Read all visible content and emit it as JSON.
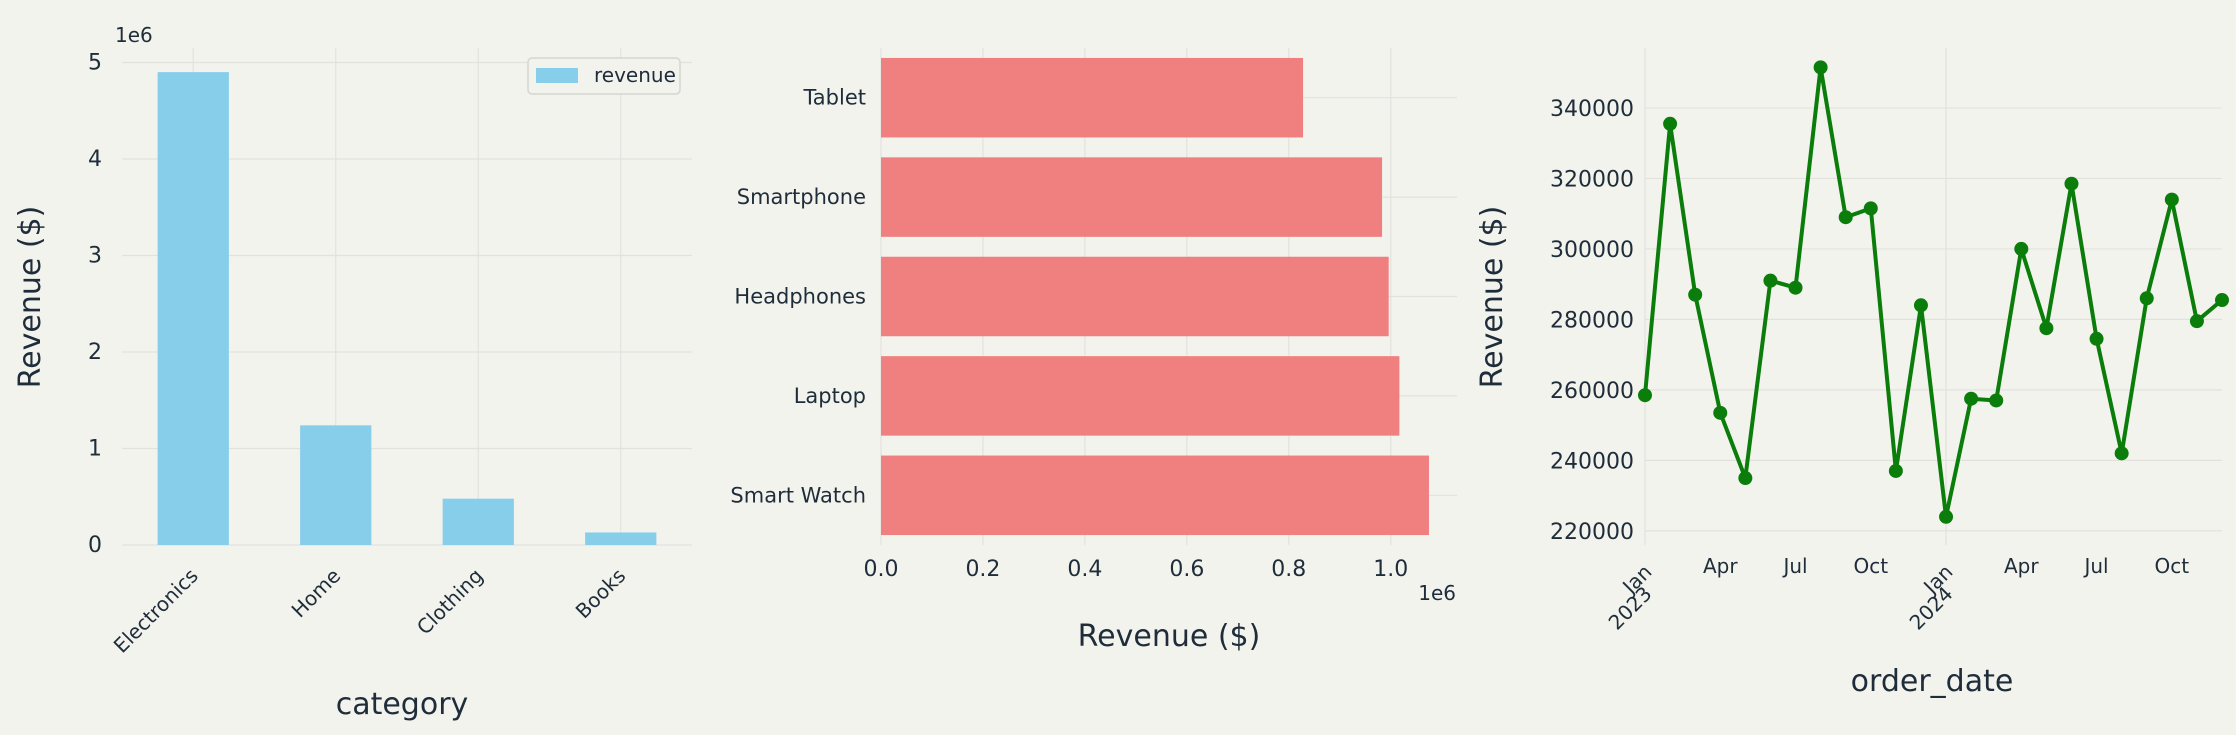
{
  "colors": {
    "background": "#f3f3ee",
    "grid": "#e2e2dd",
    "text": "#1f2d3a",
    "bar_vertical": "#87ceeb",
    "bar_horizontal": "#f08080",
    "line": "#0a7d0a"
  },
  "chart_data": [
    {
      "type": "bar",
      "categories": [
        "Electronics",
        "Home",
        "Clothing",
        "Books"
      ],
      "series": [
        {
          "name": "revenue",
          "values": [
            4900000,
            1240000,
            480000,
            130000
          ]
        }
      ],
      "xlabel": "category",
      "ylabel": "Revenue ($)",
      "ylim": [
        0,
        5150000
      ],
      "yticks": [
        0,
        1000000,
        2000000,
        3000000,
        4000000,
        5000000
      ],
      "ytick_labels": [
        "0",
        "1",
        "2",
        "3",
        "4",
        "5"
      ],
      "offset_text": "1e6",
      "legend": "top-right",
      "grid": true
    },
    {
      "type": "bar",
      "orientation": "horizontal",
      "categories": [
        "Smart Watch",
        "Laptop",
        "Headphones",
        "Smartphone",
        "Tablet"
      ],
      "values": [
        1075000,
        1017000,
        996000,
        983000,
        828000
      ],
      "xlabel": "Revenue ($)",
      "xlim": [
        0,
        1130000
      ],
      "xticks": [
        0,
        200000,
        400000,
        600000,
        800000,
        1000000
      ],
      "xtick_labels": [
        "0.0",
        "0.2",
        "0.4",
        "0.6",
        "0.8",
        "1.0"
      ],
      "offset_text": "1e6",
      "grid": true
    },
    {
      "type": "line",
      "x": [
        "2023-01",
        "2023-02",
        "2023-03",
        "2023-04",
        "2023-05",
        "2023-06",
        "2023-07",
        "2023-08",
        "2023-09",
        "2023-10",
        "2023-11",
        "2023-12",
        "2024-01",
        "2024-02",
        "2024-03",
        "2024-04",
        "2024-05",
        "2024-06",
        "2024-07",
        "2024-08",
        "2024-09",
        "2024-10",
        "2024-11",
        "2024-12"
      ],
      "series": [
        {
          "values": [
            258500,
            335500,
            287000,
            253500,
            235000,
            291000,
            289000,
            351500,
            309000,
            311500,
            237000,
            284000,
            224000,
            257500,
            257000,
            300000,
            277500,
            318500,
            274500,
            242000,
            286000,
            314000,
            279500,
            285500
          ]
        }
      ],
      "xlabel": "order_date",
      "ylabel": "Revenue ($)",
      "ylim": [
        216000,
        357000
      ],
      "yticks": [
        220000,
        240000,
        260000,
        280000,
        300000,
        320000,
        340000
      ],
      "ytick_labels": [
        "220000",
        "240000",
        "260000",
        "280000",
        "300000",
        "320000",
        "340000"
      ],
      "xtick_labels": [
        {
          "month": "2023-01",
          "label": "Jan",
          "year": "2023"
        },
        {
          "month": "2023-04",
          "label": "Apr",
          "year": ""
        },
        {
          "month": "2023-07",
          "label": "Jul",
          "year": ""
        },
        {
          "month": "2023-10",
          "label": "Oct",
          "year": ""
        },
        {
          "month": "2024-01",
          "label": "Jan",
          "year": "2024"
        },
        {
          "month": "2024-04",
          "label": "Apr",
          "year": ""
        },
        {
          "month": "2024-07",
          "label": "Jul",
          "year": ""
        },
        {
          "month": "2024-10",
          "label": "Oct",
          "year": ""
        }
      ],
      "grid": true
    }
  ]
}
